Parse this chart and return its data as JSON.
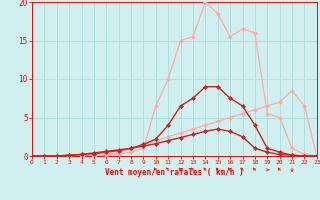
{
  "title": "",
  "xlabel": "Vent moyen/en rafales ( km/h )",
  "ylabel": "",
  "xlim": [
    0,
    23
  ],
  "ylim": [
    0,
    20
  ],
  "xticks": [
    0,
    1,
    2,
    3,
    4,
    5,
    6,
    7,
    8,
    9,
    10,
    11,
    12,
    13,
    14,
    15,
    16,
    17,
    18,
    19,
    20,
    21,
    22,
    23
  ],
  "yticks": [
    0,
    5,
    10,
    15,
    20
  ],
  "background_color": "#cff0ee",
  "grid_color": "#aaddda",
  "series": [
    {
      "label": "light_pink_wide",
      "x": [
        0,
        1,
        2,
        3,
        4,
        5,
        6,
        7,
        8,
        9,
        10,
        11,
        12,
        13,
        14,
        15,
        16,
        17,
        18,
        19,
        20,
        21,
        22,
        23
      ],
      "y": [
        0,
        0,
        0,
        0,
        0,
        0,
        0.2,
        0.5,
        1.0,
        1.5,
        2.0,
        2.5,
        3.0,
        3.5,
        4.0,
        4.5,
        5.0,
        5.5,
        6.0,
        6.5,
        7.0,
        8.5,
        6.5,
        0
      ],
      "color": "#ffaaaa",
      "lw": 0.9,
      "marker": "D",
      "ms": 2.5
    },
    {
      "label": "light_pink_peak",
      "x": [
        0,
        1,
        2,
        3,
        4,
        5,
        6,
        7,
        8,
        9,
        10,
        11,
        12,
        13,
        14,
        15,
        16,
        17,
        18,
        19,
        20,
        21,
        22,
        23
      ],
      "y": [
        0,
        0,
        0,
        0,
        0,
        0,
        0.1,
        0.3,
        0.5,
        1.0,
        6.5,
        10.0,
        15.0,
        15.5,
        20.0,
        18.5,
        15.5,
        16.5,
        16.0,
        5.5,
        5.0,
        1.0,
        0.2,
        0
      ],
      "color": "#ffaaaa",
      "lw": 0.9,
      "marker": "D",
      "ms": 2.5
    },
    {
      "label": "dark_red_low",
      "x": [
        0,
        1,
        2,
        3,
        4,
        5,
        6,
        7,
        8,
        9,
        10,
        11,
        12,
        13,
        14,
        15,
        16,
        17,
        18,
        19,
        20,
        21,
        22,
        23
      ],
      "y": [
        0,
        0,
        0,
        0.1,
        0.2,
        0.4,
        0.6,
        0.8,
        1.0,
        1.3,
        1.6,
        2.0,
        2.4,
        2.8,
        3.2,
        3.5,
        3.2,
        2.5,
        1.0,
        0.5,
        0.2,
        0.1,
        0,
        0
      ],
      "color": "#cc2222",
      "lw": 1.0,
      "marker": "D",
      "ms": 2.5
    },
    {
      "label": "dark_red_peak",
      "x": [
        0,
        1,
        2,
        3,
        4,
        5,
        6,
        7,
        8,
        9,
        10,
        11,
        12,
        13,
        14,
        15,
        16,
        17,
        18,
        19,
        20,
        21,
        22,
        23
      ],
      "y": [
        0,
        0,
        0,
        0.1,
        0.2,
        0.3,
        0.5,
        0.7,
        1.0,
        1.5,
        2.2,
        4.0,
        6.5,
        7.5,
        9.0,
        9.0,
        7.5,
        6.5,
        4.0,
        1.0,
        0.5,
        0.1,
        0,
        0
      ],
      "color": "#cc2222",
      "lw": 1.0,
      "marker": "D",
      "ms": 2.5
    }
  ]
}
